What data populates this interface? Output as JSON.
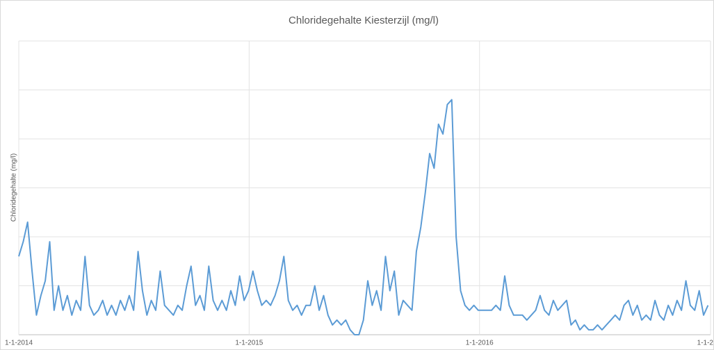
{
  "chart_data": {
    "type": "line",
    "title": "Chloridegehalte Kiesterzijl (mg/l)",
    "y_label": "Chloridegehalte (mg/l)",
    "x": [
      "2014-01-01",
      "2014-01-08",
      "2014-01-15",
      "2014-01-22",
      "2014-01-29",
      "2014-02-05",
      "2014-02-12",
      "2014-02-19",
      "2014-02-26",
      "2014-03-05",
      "2014-03-12",
      "2014-03-19",
      "2014-03-26",
      "2014-04-02",
      "2014-04-09",
      "2014-04-16",
      "2014-04-23",
      "2014-04-30",
      "2014-05-07",
      "2014-05-14",
      "2014-05-21",
      "2014-05-28",
      "2014-06-04",
      "2014-06-11",
      "2014-06-18",
      "2014-06-25",
      "2014-07-02",
      "2014-07-09",
      "2014-07-16",
      "2014-07-23",
      "2014-07-30",
      "2014-08-06",
      "2014-08-13",
      "2014-08-20",
      "2014-08-27",
      "2014-09-03",
      "2014-09-10",
      "2014-09-17",
      "2014-09-24",
      "2014-10-01",
      "2014-10-08",
      "2014-10-15",
      "2014-10-22",
      "2014-10-29",
      "2014-11-05",
      "2014-11-12",
      "2014-11-19",
      "2014-11-26",
      "2014-12-03",
      "2014-12-10",
      "2014-12-17",
      "2014-12-24",
      "2014-12-31",
      "2015-01-07",
      "2015-01-14",
      "2015-01-21",
      "2015-01-28",
      "2015-02-04",
      "2015-02-11",
      "2015-02-18",
      "2015-02-25",
      "2015-03-04",
      "2015-03-11",
      "2015-03-18",
      "2015-03-25",
      "2015-04-01",
      "2015-04-08",
      "2015-04-15",
      "2015-04-22",
      "2015-04-29",
      "2015-05-06",
      "2015-05-13",
      "2015-05-20",
      "2015-05-27",
      "2015-06-03",
      "2015-06-10",
      "2015-06-17",
      "2015-06-24",
      "2015-07-01",
      "2015-07-08",
      "2015-07-15",
      "2015-07-22",
      "2015-07-29",
      "2015-08-05",
      "2015-08-12",
      "2015-08-19",
      "2015-08-26",
      "2015-09-02",
      "2015-09-09",
      "2015-09-16",
      "2015-09-23",
      "2015-09-30",
      "2015-10-07",
      "2015-10-14",
      "2015-10-21",
      "2015-10-28",
      "2015-11-04",
      "2015-11-11",
      "2015-11-18",
      "2015-11-25",
      "2015-12-02",
      "2015-12-09",
      "2015-12-16",
      "2015-12-23",
      "2015-12-30",
      "2016-01-06",
      "2016-01-13",
      "2016-01-20",
      "2016-01-27",
      "2016-02-03",
      "2016-02-10",
      "2016-02-17",
      "2016-02-24",
      "2016-03-02",
      "2016-03-09",
      "2016-03-16",
      "2016-03-23",
      "2016-03-30",
      "2016-04-06",
      "2016-04-13",
      "2016-04-20",
      "2016-04-27",
      "2016-05-04",
      "2016-05-11",
      "2016-05-18",
      "2016-05-25",
      "2016-06-01",
      "2016-06-08",
      "2016-06-15",
      "2016-06-22",
      "2016-06-29",
      "2016-07-06",
      "2016-07-13",
      "2016-07-20",
      "2016-07-27",
      "2016-08-03",
      "2016-08-10",
      "2016-08-17",
      "2016-08-24",
      "2016-08-31",
      "2016-09-07",
      "2016-09-14",
      "2016-09-21",
      "2016-09-28",
      "2016-10-05",
      "2016-10-12",
      "2016-10-19",
      "2016-10-26",
      "2016-11-02",
      "2016-11-09",
      "2016-11-16",
      "2016-11-23",
      "2016-11-30",
      "2016-12-07",
      "2016-12-14",
      "2016-12-21",
      "2016-12-28"
    ],
    "values": [
      1.6,
      1.9,
      2.3,
      1.3,
      0.4,
      0.8,
      1.1,
      1.9,
      0.5,
      1.0,
      0.5,
      0.8,
      0.4,
      0.7,
      0.5,
      1.6,
      0.6,
      0.4,
      0.5,
      0.7,
      0.4,
      0.6,
      0.4,
      0.7,
      0.5,
      0.8,
      0.5,
      1.7,
      0.9,
      0.4,
      0.7,
      0.5,
      1.3,
      0.6,
      0.5,
      0.4,
      0.6,
      0.5,
      1.0,
      1.4,
      0.6,
      0.8,
      0.5,
      1.4,
      0.7,
      0.5,
      0.7,
      0.5,
      0.9,
      0.6,
      1.2,
      0.7,
      0.9,
      1.3,
      0.9,
      0.6,
      0.7,
      0.6,
      0.8,
      1.1,
      1.6,
      0.7,
      0.5,
      0.6,
      0.4,
      0.6,
      0.6,
      1.0,
      0.5,
      0.8,
      0.4,
      0.2,
      0.3,
      0.2,
      0.3,
      0.1,
      0.0,
      0.0,
      0.3,
      1.1,
      0.6,
      0.9,
      0.5,
      1.6,
      0.9,
      1.3,
      0.4,
      0.7,
      0.6,
      0.5,
      1.7,
      2.2,
      2.9,
      3.7,
      3.4,
      4.3,
      4.1,
      4.7,
      4.8,
      2.0,
      0.9,
      0.6,
      0.5,
      0.6,
      0.5,
      0.5,
      0.5,
      0.5,
      0.6,
      0.5,
      1.2,
      0.6,
      0.4,
      0.4,
      0.4,
      0.3,
      0.4,
      0.5,
      0.8,
      0.5,
      0.4,
      0.7,
      0.5,
      0.6,
      0.7,
      0.2,
      0.3,
      0.1,
      0.2,
      0.1,
      0.1,
      0.2,
      0.1,
      0.2,
      0.3,
      0.4,
      0.3,
      0.6,
      0.7,
      0.4,
      0.6,
      0.3,
      0.4,
      0.3,
      0.7,
      0.4,
      0.3,
      0.6,
      0.4,
      0.7,
      0.5,
      1.1,
      0.6,
      0.5,
      0.9,
      0.4,
      0.6
    ],
    "color": "#5b9bd5",
    "xlim": [
      "2014-01-01",
      "2017-01-01"
    ],
    "xticks": [
      {
        "value": "2014-01-01",
        "label": "1-1-2014"
      },
      {
        "value": "2015-01-01",
        "label": "1-1-2015"
      },
      {
        "value": "2016-01-01",
        "label": "1-1-2016"
      },
      {
        "value": "2017-01-01",
        "label": "1-1-2"
      }
    ],
    "ylim": [
      0,
      6
    ],
    "yticks": [
      0,
      1,
      2,
      3,
      4,
      5,
      6
    ],
    "grid": true
  }
}
